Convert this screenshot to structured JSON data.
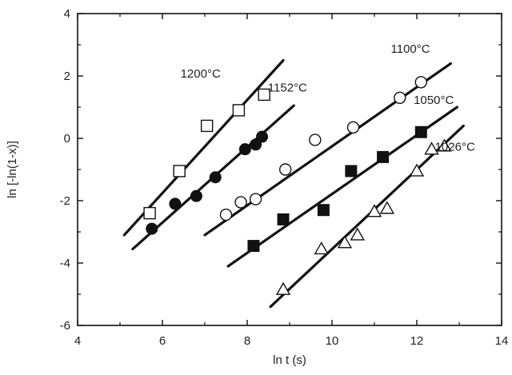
{
  "chart_data": {
    "type": "scatter",
    "xlabel": "ln t (s)",
    "ylabel": "ln [-ln(1-x)]",
    "xlim": [
      4,
      14
    ],
    "ylim": [
      -6,
      4
    ],
    "xticks": [
      "4",
      "6",
      "8",
      "10",
      "12",
      "14"
    ],
    "yticks": [
      "-6",
      "-4",
      "-2",
      "0",
      "2",
      "4"
    ],
    "grid": false,
    "legend": "none",
    "series": [
      {
        "name": "1200°C",
        "marker": "open-square",
        "points": [
          [
            5.7,
            -2.4
          ],
          [
            6.4,
            -1.05
          ],
          [
            7.05,
            0.4
          ],
          [
            7.8,
            0.9
          ],
          [
            8.4,
            1.4
          ]
        ],
        "fit_line": [
          [
            5.1,
            -3.1
          ],
          [
            8.85,
            2.5
          ]
        ]
      },
      {
        "name": "1152°C",
        "marker": "filled-circle",
        "points": [
          [
            5.75,
            -2.9
          ],
          [
            6.3,
            -2.1
          ],
          [
            6.8,
            -1.85
          ],
          [
            7.25,
            -1.25
          ],
          [
            7.95,
            -0.35
          ],
          [
            8.2,
            -0.2
          ],
          [
            8.35,
            0.05
          ]
        ],
        "fit_line": [
          [
            5.3,
            -3.55
          ],
          [
            9.1,
            1.05
          ]
        ]
      },
      {
        "name": "1100°C",
        "marker": "open-circle",
        "points": [
          [
            7.5,
            -2.45
          ],
          [
            7.85,
            -2.05
          ],
          [
            8.2,
            -1.95
          ],
          [
            8.9,
            -1.0
          ],
          [
            9.6,
            -0.05
          ],
          [
            10.5,
            0.35
          ],
          [
            11.6,
            1.3
          ],
          [
            12.1,
            1.8
          ]
        ],
        "fit_line": [
          [
            7.0,
            -3.1
          ],
          [
            12.8,
            2.4
          ]
        ]
      },
      {
        "name": "1050°C",
        "marker": "filled-square",
        "points": [
          [
            8.15,
            -3.45
          ],
          [
            8.85,
            -2.6
          ],
          [
            9.8,
            -2.3
          ],
          [
            10.45,
            -1.05
          ],
          [
            11.2,
            -0.6
          ],
          [
            12.1,
            0.2
          ]
        ],
        "fit_line": [
          [
            7.55,
            -4.1
          ],
          [
            12.95,
            1.0
          ]
        ]
      },
      {
        "name": "1026°C",
        "marker": "open-triangle",
        "points": [
          [
            8.85,
            -4.85
          ],
          [
            9.75,
            -3.55
          ],
          [
            10.3,
            -3.35
          ],
          [
            10.6,
            -3.1
          ],
          [
            11.0,
            -2.35
          ],
          [
            11.3,
            -2.25
          ],
          [
            12.0,
            -1.05
          ],
          [
            12.35,
            -0.35
          ],
          [
            12.65,
            -0.25
          ]
        ],
        "fit_line": [
          [
            8.55,
            -5.4
          ],
          [
            13.1,
            0.4
          ]
        ]
      }
    ],
    "annotations": [
      {
        "text": "1200°C",
        "x": 6.9,
        "y": 1.95
      },
      {
        "text": "1152°C",
        "x": 8.95,
        "y": 1.5
      },
      {
        "text": "1100°C",
        "x": 11.85,
        "y": 2.75
      },
      {
        "text": "1050°C",
        "x": 12.4,
        "y": 1.1
      },
      {
        "text": "1026°C",
        "x": 12.9,
        "y": -0.4
      }
    ]
  }
}
